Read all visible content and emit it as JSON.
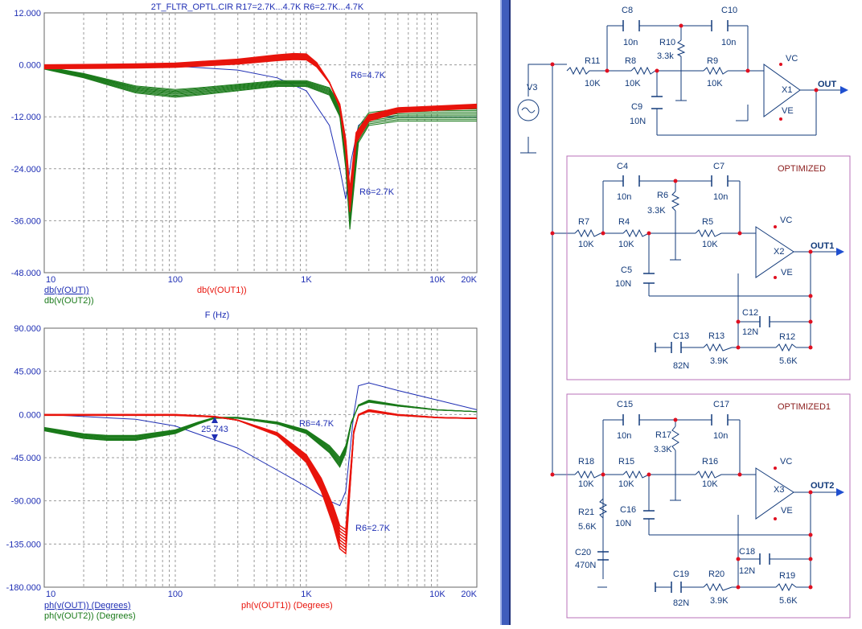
{
  "analysis": {
    "title": "2T_FLTR_OPTL.CIR R17=2.7K...4.7K R6=2.7K...4.7K",
    "freq_axis_label": "F (Hz)",
    "x_ticks": [
      "10",
      "100",
      "1K",
      "10K",
      "20K"
    ],
    "colors": {
      "out": "#1f2fb4",
      "out1": "#e8140c",
      "out2": "#1a7a1a",
      "grid": "#9a9a9a",
      "text": "#1f2fb4"
    }
  },
  "chart_data": [
    {
      "type": "line",
      "title": "2T_FLTR_OPTL.CIR R17=2.7K...4.7K R6=2.7K...4.7K",
      "xlabel": "F (Hz)",
      "xscale": "log",
      "xlim": [
        10,
        20000
      ],
      "ylim": [
        -48,
        12
      ],
      "y_ticks": [
        "12.000",
        "0.000",
        "-12.000",
        "-24.000",
        "-36.000",
        "-48.000"
      ],
      "legend": [
        "db(v(OUT))",
        "db(v(OUT2))",
        "db(v(OUT1))"
      ],
      "annotations": [
        "R6=4.7K",
        "R6=2.7K"
      ],
      "series": [
        {
          "name": "db(v(OUT))",
          "color": "#1f2fb4",
          "x": [
            10,
            50,
            100,
            300,
            600,
            1000,
            1500,
            1800,
            2000,
            2200,
            2500,
            3000,
            5000,
            10000,
            20000
          ],
          "y": [
            0,
            0,
            -0.3,
            -1.2,
            -3,
            -6,
            -14,
            -24,
            -31,
            -22,
            -14,
            -12,
            -12,
            -12,
            -12
          ]
        },
        {
          "name": "db(v(OUT2))",
          "color": "#1a7a1a",
          "x": [
            10,
            20,
            50,
            100,
            150,
            300,
            600,
            1000,
            1500,
            1800,
            2000,
            2150,
            2500,
            3000,
            5000,
            10000,
            20000
          ],
          "y": [
            -1,
            -3,
            -6.5,
            -7.5,
            -7,
            -6,
            -5,
            -5,
            -7,
            -12,
            -24,
            -38,
            -18,
            -14,
            -13,
            -13,
            -13
          ]
        },
        {
          "name": "db(v(OUT1))",
          "color": "#e8140c",
          "x": [
            10,
            50,
            100,
            300,
            600,
            800,
            1000,
            1200,
            1500,
            1800,
            2000,
            2150,
            2400,
            3000,
            5000,
            10000,
            20000
          ],
          "y": [
            0,
            0.2,
            0.4,
            1.3,
            2.3,
            2.6,
            2.5,
            0.5,
            -4,
            -10,
            -20,
            -34,
            -18,
            -13,
            -11,
            -10.5,
            -10
          ]
        }
      ]
    },
    {
      "type": "line",
      "xlabel": "",
      "xscale": "log",
      "xlim": [
        10,
        20000
      ],
      "ylim": [
        -180,
        90
      ],
      "y_ticks": [
        "90.000",
        "45.000",
        "0.000",
        "-45.000",
        "-90.000",
        "-135.000",
        "-180.000"
      ],
      "legend": [
        "ph(v(OUT)) (Degrees)",
        "ph(v(OUT2)) (Degrees)",
        "ph(v(OUT1)) (Degrees)"
      ],
      "annotations": [
        "R6=4.7K",
        "R6=2.7K",
        "25.743"
      ],
      "series": [
        {
          "name": "ph(v(OUT)) (Degrees)",
          "color": "#1f2fb4",
          "x": [
            10,
            50,
            100,
            300,
            600,
            1000,
            1500,
            1800,
            2000,
            2300,
            2500,
            3000,
            5000,
            10000,
            20000
          ],
          "y": [
            0,
            -5,
            -12,
            -35,
            -58,
            -75,
            -90,
            -95,
            -80,
            0,
            30,
            33,
            25,
            15,
            5
          ]
        },
        {
          "name": "ph(v(OUT2)) (Degrees)",
          "color": "#1a7a1a",
          "x": [
            10,
            20,
            30,
            50,
            100,
            150,
            200,
            300,
            600,
            1000,
            1500,
            1800,
            2000,
            2200,
            2500,
            3000,
            5000,
            10000,
            20000
          ],
          "y": [
            -17,
            -25,
            -27,
            -27,
            -20,
            -10,
            -4,
            -4,
            -10,
            -20,
            -40,
            -55,
            -40,
            -10,
            10,
            15,
            10,
            5,
            3
          ]
        },
        {
          "name": "ph(v(OUT1)) (Degrees)",
          "color": "#e8140c",
          "x": [
            10,
            50,
            100,
            200,
            300,
            600,
            1000,
            1300,
            1600,
            1800,
            2000,
            2100,
            2300,
            2500,
            3000,
            5000,
            10000,
            20000
          ],
          "y": [
            0,
            0,
            0,
            -2,
            -6,
            -22,
            -50,
            -80,
            -115,
            -140,
            -145,
            -100,
            -20,
            0,
            5,
            0,
            -3,
            -4
          ]
        }
      ]
    }
  ],
  "schematic": {
    "components": [
      "C8",
      "10n",
      "C10",
      "10n",
      "R10",
      "3.3k",
      "R11",
      "10K",
      "R8",
      "10K",
      "R9",
      "10K",
      "C9",
      "10N",
      "V3",
      "X1",
      "VC",
      "VE",
      "OUT",
      "OPTIMIZED",
      "C4",
      "10n",
      "C7",
      "10n",
      "R6",
      "3.3K",
      "R7",
      "10K",
      "R4",
      "10K",
      "R5",
      "10K",
      "C5",
      "10N",
      "X2",
      "VC",
      "VE",
      "OUT1",
      "C12",
      "12N",
      "C13",
      "82N",
      "R13",
      "3.9K",
      "R12",
      "5.6K",
      "OPTIMIZED1",
      "C15",
      "10n",
      "C17",
      "10n",
      "R17",
      "3.3K",
      "R18",
      "10K",
      "R15",
      "10K",
      "R16",
      "10K",
      "R21",
      "5.6K",
      "C16",
      "10N",
      "C20",
      "470N",
      "X3",
      "VC",
      "VE",
      "OUT2",
      "C18",
      "12N",
      "C19",
      "82N",
      "R20",
      "3.9K",
      "R19",
      "5.6K"
    ]
  }
}
